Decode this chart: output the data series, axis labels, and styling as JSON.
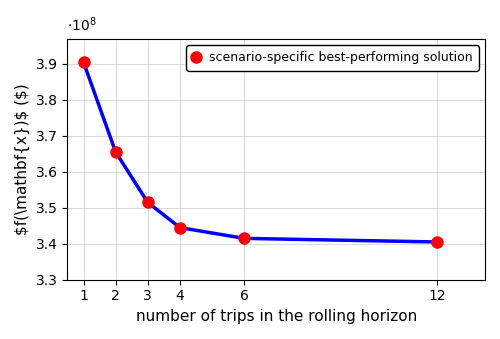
{
  "x": [
    1,
    2,
    3,
    4,
    6,
    12
  ],
  "y": [
    390500000.0,
    365500000.0,
    351500000.0,
    344500000.0,
    341500000.0,
    340500000.0
  ],
  "line_color": "#0000FF",
  "marker_color": "#FF0000",
  "marker_size": 8,
  "line_width": 2.5,
  "xlabel": "number of trips in the rolling horizon",
  "ylabel": "$f(\\mathbf{x})$ ($)",
  "legend_label": "scenario-specific best-performing solution",
  "xlim": [
    0.5,
    13.5
  ],
  "ylim": [
    330000000.0,
    397000000.0
  ],
  "yticks": [
    330000000.0,
    340000000.0,
    350000000.0,
    360000000.0,
    370000000.0,
    380000000.0,
    390000000.0
  ],
  "xticks": [
    1,
    2,
    3,
    4,
    6,
    12
  ],
  "scale_factor": 100000000.0,
  "background_color": "#ffffff"
}
